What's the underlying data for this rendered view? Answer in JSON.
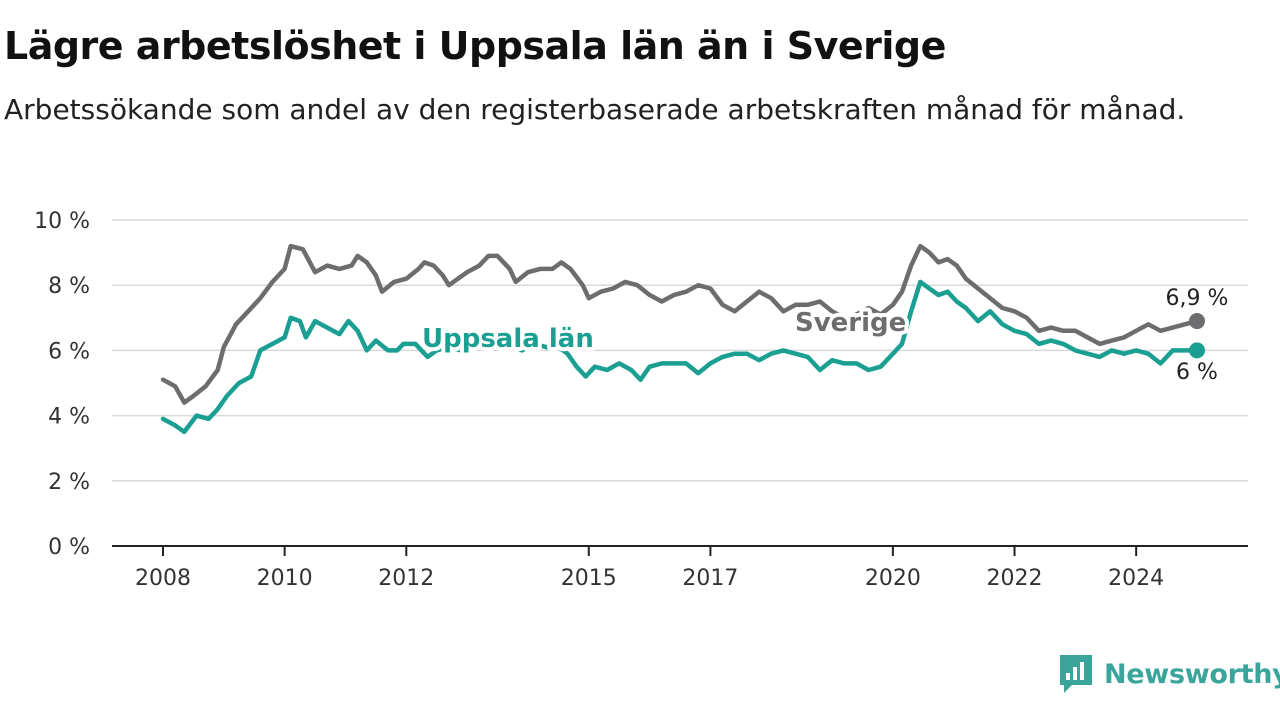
{
  "title": "Lägre arbetslöshet i Uppsala län än i Sverige",
  "subtitle": "Arbetssökande som andel av den registerbaserade arbetskraften månad för månad.",
  "brand": {
    "name": "Newsworthy",
    "color": "#3aa59b"
  },
  "chart_data": {
    "type": "line",
    "y_tick_labels": [
      "0 %",
      "2 %",
      "4 %",
      "6 %",
      "8 %",
      "10 %"
    ],
    "y_ticks": [
      0,
      2,
      4,
      6,
      8,
      10
    ],
    "ylim": [
      0,
      10
    ],
    "x_tick_labels": [
      "2008",
      "2010",
      "2012",
      "2015",
      "2017",
      "2020",
      "2022",
      "2024"
    ],
    "x_ticks": [
      2008,
      2010,
      2012,
      2015,
      2017,
      2020,
      2022,
      2024
    ],
    "xlim": [
      2007.2,
      2025.8
    ],
    "grid": true,
    "series": [
      {
        "name": "Sverige",
        "color": "#6d6d70",
        "end_label": "6,9 %",
        "points": [
          [
            2008.0,
            5.1
          ],
          [
            2008.2,
            4.9
          ],
          [
            2008.35,
            4.4
          ],
          [
            2008.5,
            4.6
          ],
          [
            2008.7,
            4.9
          ],
          [
            2008.9,
            5.4
          ],
          [
            2009.0,
            6.1
          ],
          [
            2009.2,
            6.8
          ],
          [
            2009.4,
            7.2
          ],
          [
            2009.6,
            7.6
          ],
          [
            2009.8,
            8.1
          ],
          [
            2010.0,
            8.5
          ],
          [
            2010.1,
            9.2
          ],
          [
            2010.3,
            9.1
          ],
          [
            2010.5,
            8.4
          ],
          [
            2010.7,
            8.6
          ],
          [
            2010.9,
            8.5
          ],
          [
            2011.1,
            8.6
          ],
          [
            2011.2,
            8.9
          ],
          [
            2011.35,
            8.7
          ],
          [
            2011.5,
            8.3
          ],
          [
            2011.6,
            7.8
          ],
          [
            2011.8,
            8.1
          ],
          [
            2012.0,
            8.2
          ],
          [
            2012.2,
            8.5
          ],
          [
            2012.3,
            8.7
          ],
          [
            2012.45,
            8.6
          ],
          [
            2012.6,
            8.3
          ],
          [
            2012.7,
            8.0
          ],
          [
            2012.85,
            8.2
          ],
          [
            2013.0,
            8.4
          ],
          [
            2013.2,
            8.6
          ],
          [
            2013.35,
            8.9
          ],
          [
            2013.5,
            8.9
          ],
          [
            2013.7,
            8.5
          ],
          [
            2013.8,
            8.1
          ],
          [
            2014.0,
            8.4
          ],
          [
            2014.2,
            8.5
          ],
          [
            2014.4,
            8.5
          ],
          [
            2014.55,
            8.7
          ],
          [
            2014.7,
            8.5
          ],
          [
            2014.9,
            8.0
          ],
          [
            2015.0,
            7.6
          ],
          [
            2015.2,
            7.8
          ],
          [
            2015.4,
            7.9
          ],
          [
            2015.6,
            8.1
          ],
          [
            2015.8,
            8.0
          ],
          [
            2016.0,
            7.7
          ],
          [
            2016.2,
            7.5
          ],
          [
            2016.4,
            7.7
          ],
          [
            2016.6,
            7.8
          ],
          [
            2016.8,
            8.0
          ],
          [
            2017.0,
            7.9
          ],
          [
            2017.2,
            7.4
          ],
          [
            2017.4,
            7.2
          ],
          [
            2017.6,
            7.5
          ],
          [
            2017.8,
            7.8
          ],
          [
            2018.0,
            7.6
          ],
          [
            2018.2,
            7.2
          ],
          [
            2018.4,
            7.4
          ],
          [
            2018.6,
            7.4
          ],
          [
            2018.8,
            7.5
          ],
          [
            2019.0,
            7.2
          ],
          [
            2019.2,
            7.0
          ],
          [
            2019.4,
            7.1
          ],
          [
            2019.6,
            7.3
          ],
          [
            2019.8,
            7.1
          ],
          [
            2020.0,
            7.4
          ],
          [
            2020.15,
            7.8
          ],
          [
            2020.3,
            8.6
          ],
          [
            2020.45,
            9.2
          ],
          [
            2020.6,
            9.0
          ],
          [
            2020.75,
            8.7
          ],
          [
            2020.9,
            8.8
          ],
          [
            2021.05,
            8.6
          ],
          [
            2021.2,
            8.2
          ],
          [
            2021.4,
            7.9
          ],
          [
            2021.6,
            7.6
          ],
          [
            2021.8,
            7.3
          ],
          [
            2022.0,
            7.2
          ],
          [
            2022.2,
            7.0
          ],
          [
            2022.4,
            6.6
          ],
          [
            2022.6,
            6.7
          ],
          [
            2022.8,
            6.6
          ],
          [
            2023.0,
            6.6
          ],
          [
            2023.2,
            6.4
          ],
          [
            2023.4,
            6.2
          ],
          [
            2023.6,
            6.3
          ],
          [
            2023.8,
            6.4
          ],
          [
            2024.0,
            6.6
          ],
          [
            2024.2,
            6.8
          ],
          [
            2024.4,
            6.6
          ],
          [
            2024.6,
            6.7
          ],
          [
            2024.8,
            6.8
          ],
          [
            2025.0,
            6.9
          ]
        ]
      },
      {
        "name": "Uppsala län",
        "color": "#1a9f92",
        "end_label": "6 %",
        "points": [
          [
            2008.0,
            3.9
          ],
          [
            2008.2,
            3.7
          ],
          [
            2008.35,
            3.5
          ],
          [
            2008.55,
            4.0
          ],
          [
            2008.75,
            3.9
          ],
          [
            2008.9,
            4.2
          ],
          [
            2009.05,
            4.6
          ],
          [
            2009.25,
            5.0
          ],
          [
            2009.45,
            5.2
          ],
          [
            2009.6,
            6.0
          ],
          [
            2009.8,
            6.2
          ],
          [
            2010.0,
            6.4
          ],
          [
            2010.1,
            7.0
          ],
          [
            2010.25,
            6.9
          ],
          [
            2010.35,
            6.4
          ],
          [
            2010.5,
            6.9
          ],
          [
            2010.7,
            6.7
          ],
          [
            2010.9,
            6.5
          ],
          [
            2011.05,
            6.9
          ],
          [
            2011.2,
            6.6
          ],
          [
            2011.35,
            6.0
          ],
          [
            2011.5,
            6.3
          ],
          [
            2011.7,
            6.0
          ],
          [
            2011.85,
            6.0
          ],
          [
            2011.95,
            6.2
          ],
          [
            2012.15,
            6.2
          ],
          [
            2012.35,
            5.8
          ],
          [
            2012.5,
            6.0
          ],
          [
            2012.7,
            6.1
          ],
          [
            2012.9,
            6.0
          ],
          [
            2013.1,
            6.1
          ],
          [
            2013.3,
            6.2
          ],
          [
            2013.5,
            6.4
          ],
          [
            2013.7,
            6.2
          ],
          [
            2013.9,
            6.0
          ],
          [
            2014.1,
            6.2
          ],
          [
            2014.3,
            6.1
          ],
          [
            2014.5,
            6.1
          ],
          [
            2014.65,
            5.9
          ],
          [
            2014.8,
            5.5
          ],
          [
            2014.95,
            5.2
          ],
          [
            2015.1,
            5.5
          ],
          [
            2015.3,
            5.4
          ],
          [
            2015.5,
            5.6
          ],
          [
            2015.7,
            5.4
          ],
          [
            2015.85,
            5.1
          ],
          [
            2016.0,
            5.5
          ],
          [
            2016.2,
            5.6
          ],
          [
            2016.4,
            5.6
          ],
          [
            2016.6,
            5.6
          ],
          [
            2016.8,
            5.3
          ],
          [
            2017.0,
            5.6
          ],
          [
            2017.2,
            5.8
          ],
          [
            2017.4,
            5.9
          ],
          [
            2017.6,
            5.9
          ],
          [
            2017.8,
            5.7
          ],
          [
            2018.0,
            5.9
          ],
          [
            2018.2,
            6.0
          ],
          [
            2018.4,
            5.9
          ],
          [
            2018.6,
            5.8
          ],
          [
            2018.8,
            5.4
          ],
          [
            2019.0,
            5.7
          ],
          [
            2019.2,
            5.6
          ],
          [
            2019.4,
            5.6
          ],
          [
            2019.6,
            5.4
          ],
          [
            2019.8,
            5.5
          ],
          [
            2020.0,
            5.9
          ],
          [
            2020.15,
            6.2
          ],
          [
            2020.3,
            7.2
          ],
          [
            2020.45,
            8.1
          ],
          [
            2020.6,
            7.9
          ],
          [
            2020.75,
            7.7
          ],
          [
            2020.9,
            7.8
          ],
          [
            2021.05,
            7.5
          ],
          [
            2021.2,
            7.3
          ],
          [
            2021.4,
            6.9
          ],
          [
            2021.6,
            7.2
          ],
          [
            2021.8,
            6.8
          ],
          [
            2022.0,
            6.6
          ],
          [
            2022.2,
            6.5
          ],
          [
            2022.4,
            6.2
          ],
          [
            2022.6,
            6.3
          ],
          [
            2022.8,
            6.2
          ],
          [
            2023.0,
            6.0
          ],
          [
            2023.2,
            5.9
          ],
          [
            2023.4,
            5.8
          ],
          [
            2023.6,
            6.0
          ],
          [
            2023.8,
            5.9
          ],
          [
            2024.0,
            6.0
          ],
          [
            2024.2,
            5.9
          ],
          [
            2024.4,
            5.6
          ],
          [
            2024.6,
            6.0
          ],
          [
            2024.8,
            6.0
          ],
          [
            2025.0,
            6.0
          ]
        ]
      }
    ]
  }
}
